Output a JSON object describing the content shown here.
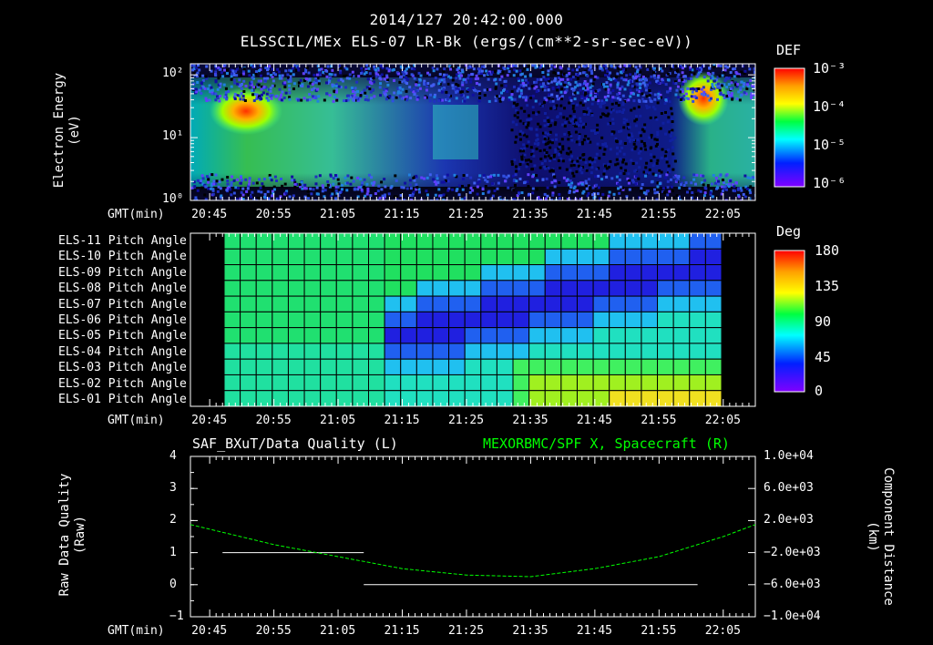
{
  "header": {
    "timestamp": "2014/127  20:42:00.000",
    "subtitle": "ELSSCIL/MEx ELS-07 LR-Bk  (ergs/(cm**2-sr-sec-eV))"
  },
  "time_axis": {
    "label": "GMT(min)",
    "ticks": [
      "20:45",
      "20:55",
      "21:05",
      "21:15",
      "21:25",
      "21:35",
      "21:45",
      "21:55",
      "22:05"
    ]
  },
  "panel1": {
    "ylabel_line1": "Electron Energy",
    "ylabel_line2": "(eV)",
    "yticks": [
      "10²",
      "10¹",
      "10⁰"
    ],
    "colorbar": {
      "title": "DEF",
      "ticks": [
        "10⁻³",
        "10⁻⁴",
        "10⁻⁵",
        "10⁻⁶"
      ],
      "colors": [
        "#ff0000",
        "#ffa000",
        "#ffff00",
        "#00ff00",
        "#00ffff",
        "#0000ff",
        "#8000ff"
      ]
    }
  },
  "panel2": {
    "row_labels": [
      "ELS-11 Pitch Angle",
      "ELS-10 Pitch Angle",
      "ELS-09 Pitch Angle",
      "ELS-08 Pitch Angle",
      "ELS-07 Pitch Angle",
      "ELS-06 Pitch Angle",
      "ELS-05 Pitch Angle",
      "ELS-04 Pitch Angle",
      "ELS-03 Pitch Angle",
      "ELS-02 Pitch Angle",
      "ELS-01 Pitch Angle"
    ],
    "colorbar": {
      "title": "Deg",
      "ticks": [
        "180",
        "135",
        "90",
        "45",
        "0"
      ],
      "colors": [
        "#ff0000",
        "#ffa000",
        "#ffff00",
        "#00ff00",
        "#00ffff",
        "#0000ff",
        "#8000ff"
      ]
    }
  },
  "panel3": {
    "left_title": "SAF_BXuT/Data Quality (L)",
    "right_title": "MEXORBMC/SPF X, Spacecraft (R)",
    "right_title_color": "#00ff00",
    "ylabel_line1": "Raw Data Quality",
    "ylabel_line2": "(Raw)",
    "yrlabel_line1": "Component Distance",
    "yrlabel_line2": "(km)",
    "yticks_left": [
      "4",
      "3",
      "2",
      "1",
      "0",
      "−1"
    ],
    "yticks_right": [
      "1.0e+04",
      "6.0e+03",
      "2.0e+03",
      "−2.0e+03",
      "−6.0e+03",
      "−1.0e+04"
    ]
  },
  "chart_data": [
    {
      "type": "heatmap",
      "title": "ELSSCIL/MEx ELS-07 LR-Bk  (ergs/(cm**2-sr-sec-eV))",
      "xlabel": "GMT(min)",
      "ylabel": "Electron Energy (eV)",
      "yscale": "log",
      "ylim": [
        1,
        150
      ],
      "colorbar_label": "DEF",
      "colorbar_range": [
        1e-06,
        0.001
      ],
      "description_points": [
        {
          "time": "20:49",
          "energy_eV": 25,
          "DEF": 0.0005
        },
        {
          "time": "21:20",
          "energy_eV": 10,
          "DEF": 5e-05
        },
        {
          "time": "22:00",
          "energy_eV": 40,
          "DEF": 0.0004
        }
      ]
    },
    {
      "type": "heatmap",
      "xlabel": "GMT(min)",
      "ylabel": "Pitch Angle",
      "colorbar_label": "Deg",
      "colorbar_range": [
        0,
        180
      ],
      "time_range": [
        "20:46",
        "22:02"
      ],
      "minimum_band": [
        {
          "time": "21:20",
          "row": "ELS-06",
          "angle_deg": 20
        },
        {
          "time": "21:45",
          "row": "ELS-08",
          "angle_deg": 15
        },
        {
          "time": "21:55",
          "row": "ELS-10",
          "angle_deg": 25
        }
      ]
    },
    {
      "type": "line",
      "series": [
        {
          "name": "SAF_BXuT/Data Quality (L)",
          "color": "#ffffff",
          "axis": "left",
          "segments": [
            {
              "x": [
                "20:47",
                "21:09"
              ],
              "y": [
                1,
                1
              ]
            },
            {
              "x": [
                "21:09",
                "22:01"
              ],
              "y": [
                0,
                0
              ]
            }
          ]
        },
        {
          "name": "MEXORBMC/SPF X, Spacecraft (R)",
          "color": "#00ff00",
          "axis": "right",
          "x": [
            "20:42",
            "20:55",
            "21:05",
            "21:15",
            "21:25",
            "21:35",
            "21:45",
            "21:55",
            "22:05",
            "22:10"
          ],
          "y": [
            1500,
            -1000,
            -2500,
            -4000,
            -4800,
            -5000,
            -4000,
            -2500,
            0,
            1500
          ]
        }
      ],
      "ylim_left": [
        -1,
        4
      ],
      "ylim_right": [
        -10000,
        10000
      ]
    }
  ]
}
